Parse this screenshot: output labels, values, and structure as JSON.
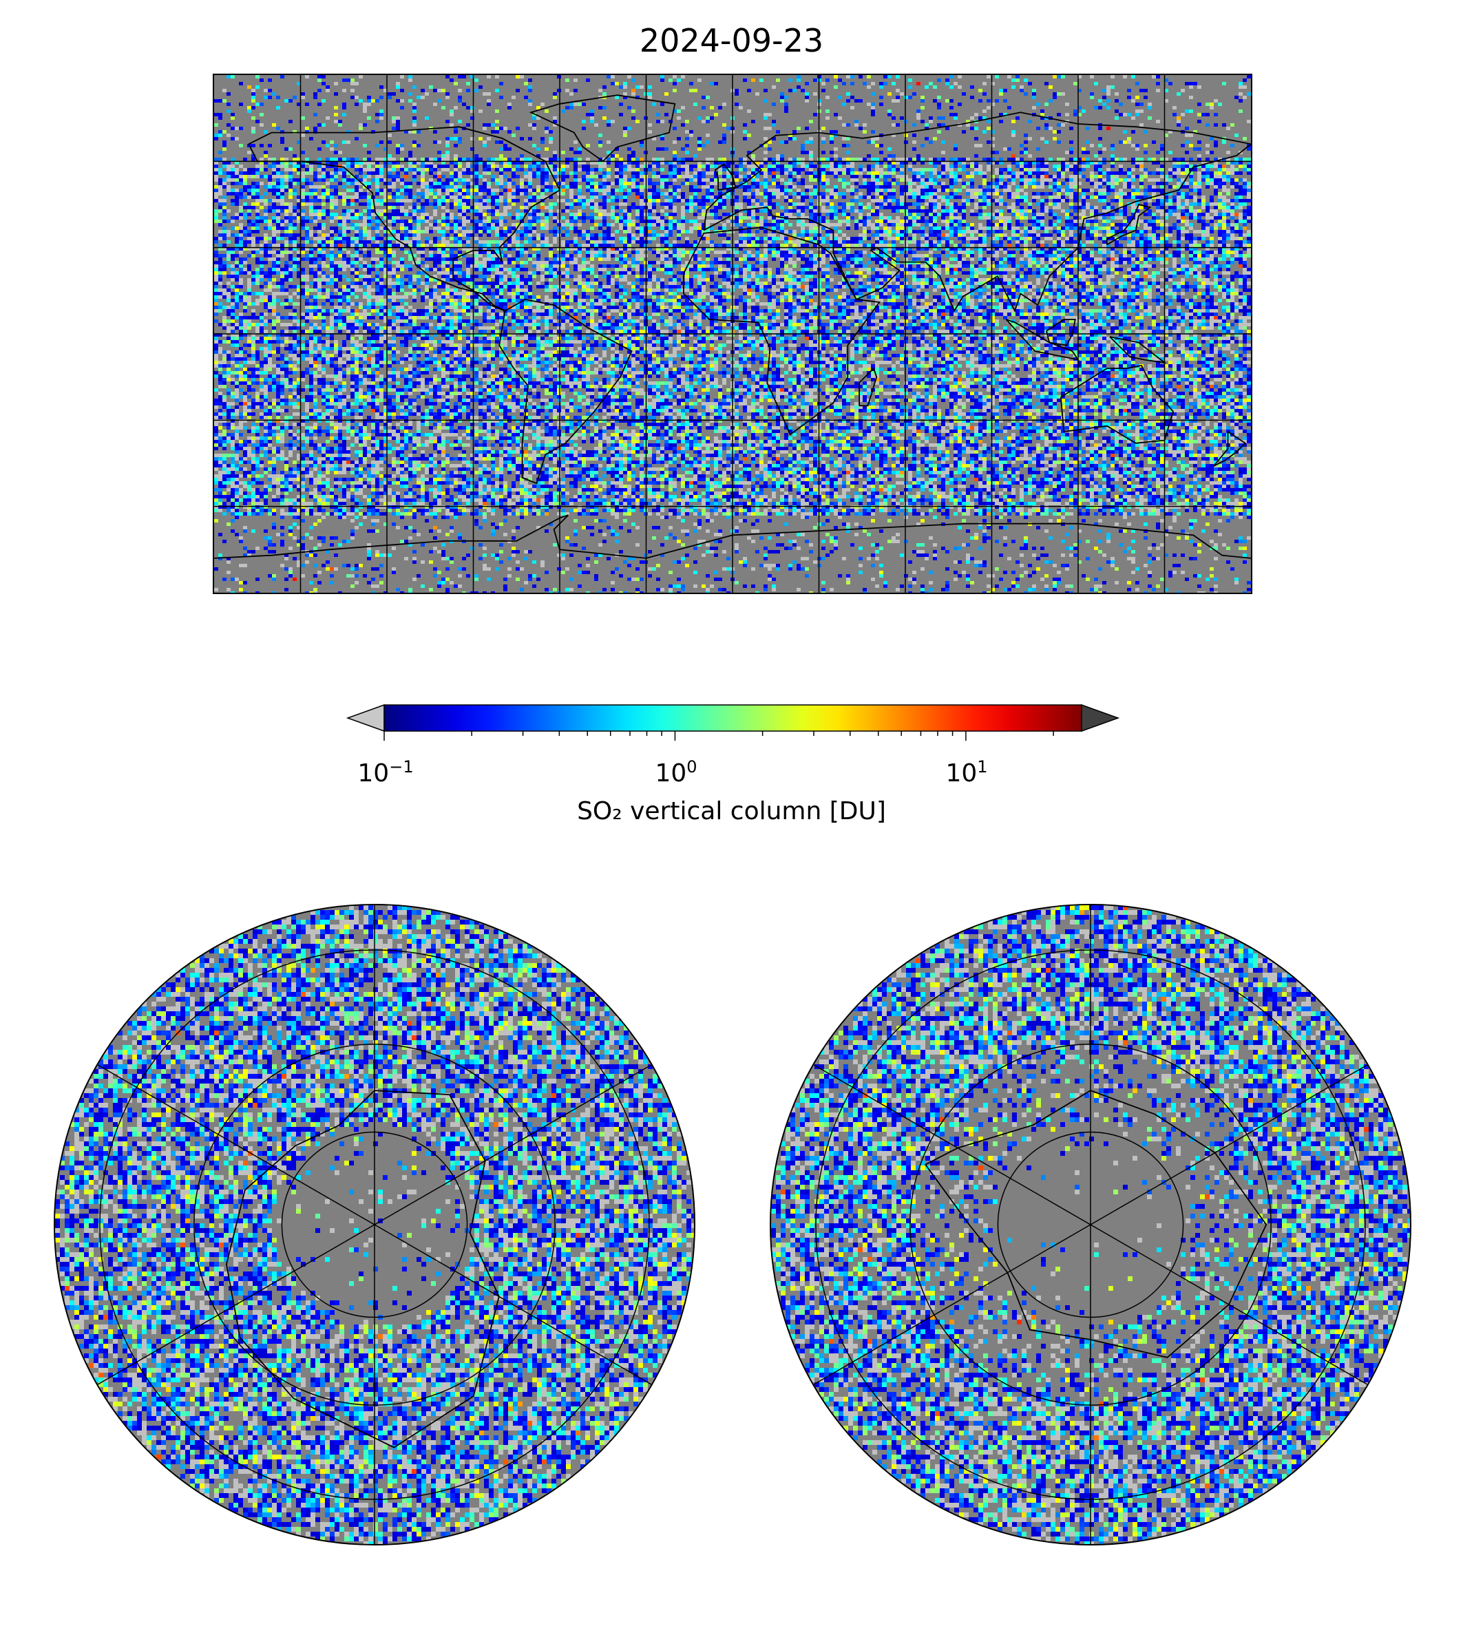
{
  "title": "2024-09-23",
  "colorbar": {
    "label": "SO₂ vertical column [DU]",
    "scale": "log",
    "range": [
      0.1,
      25
    ],
    "ticks": [
      {
        "base": "10",
        "exp": "−1"
      },
      {
        "base": "10",
        "exp": "0"
      },
      {
        "base": "10",
        "exp": "1"
      }
    ],
    "under_color": "#c8c8c8",
    "over_color": "#404040",
    "colormap": "jet"
  },
  "maps": {
    "global": {
      "projection": "equirectangular",
      "lon_gridline_step": 30,
      "lat_gridline_step": 30
    },
    "north_polar": {
      "projection": "north polar stereographic"
    },
    "south_polar": {
      "projection": "south polar stereographic"
    }
  },
  "colors": {
    "no_data": "#808080",
    "low_value": "#c0c0c0",
    "coastline": "#000000"
  }
}
